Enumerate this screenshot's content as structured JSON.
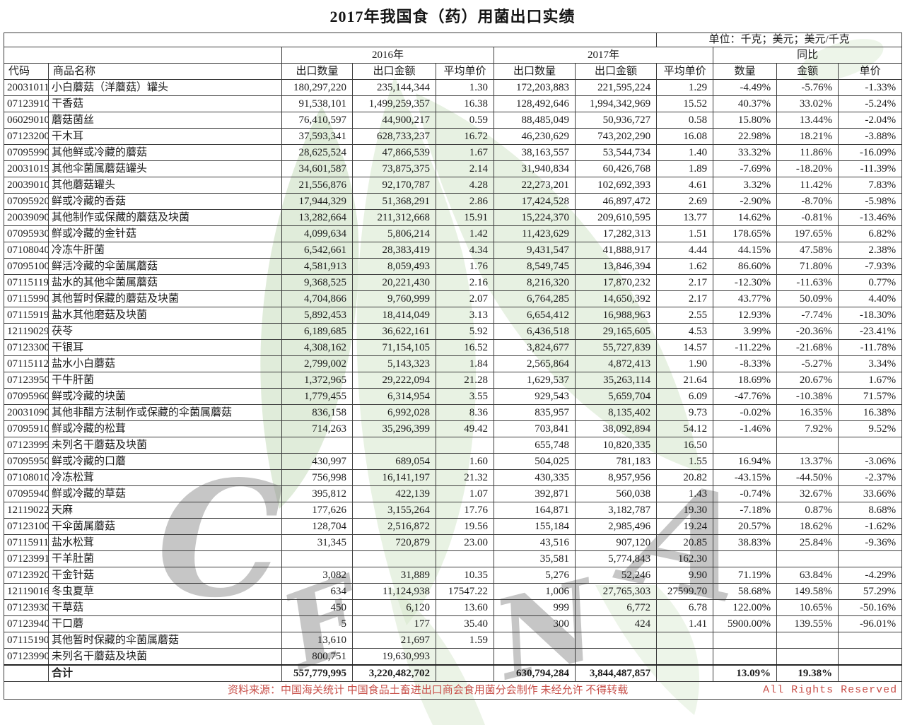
{
  "title": "2017年我国食（药）用菌出口实绩",
  "unit_note": "单位：千克；美元；美元/千克",
  "header": {
    "code": "代码",
    "name": "商品名称",
    "group_2016": "2016年",
    "group_2017": "2017年",
    "group_yoy": "同比",
    "qty": "出口数量",
    "value": "出口金额",
    "price": "平均单价",
    "yoy_qty": "数量",
    "yoy_value": "金额",
    "yoy_price": "单价"
  },
  "rows": [
    [
      "20031011",
      "小白蘑菇（洋蘑菇）罐头",
      "180,297,220",
      "235,144,344",
      "1.30",
      "172,203,883",
      "221,595,224",
      "1.29",
      "-4.49%",
      "-5.76%",
      "-1.33%"
    ],
    [
      "07123910",
      "干香菇",
      "91,538,101",
      "1,499,259,357",
      "16.38",
      "128,492,646",
      "1,994,342,969",
      "15.52",
      "40.37%",
      "33.02%",
      "-5.24%"
    ],
    [
      "06029010",
      "蘑菇菌丝",
      "76,410,597",
      "44,900,217",
      "0.59",
      "88,485,049",
      "50,936,727",
      "0.58",
      "15.80%",
      "13.44%",
      "-2.04%"
    ],
    [
      "07123200",
      "干木耳",
      "37,593,341",
      "628,733,237",
      "16.72",
      "46,230,629",
      "743,202,290",
      "16.08",
      "22.98%",
      "18.21%",
      "-3.88%"
    ],
    [
      "07095990",
      "其他鲜或冷藏的蘑菇",
      "28,625,524",
      "47,866,539",
      "1.67",
      "38,163,557",
      "53,544,734",
      "1.40",
      "33.32%",
      "11.86%",
      "-16.09%"
    ],
    [
      "20031019",
      "其他伞菌属蘑菇罐头",
      "34,601,587",
      "73,875,375",
      "2.14",
      "31,940,834",
      "60,426,768",
      "1.89",
      "-7.69%",
      "-18.20%",
      "-11.39%"
    ],
    [
      "20039010",
      "其他蘑菇罐头",
      "21,556,876",
      "92,170,787",
      "4.28",
      "22,273,201",
      "102,692,393",
      "4.61",
      "3.32%",
      "11.42%",
      "7.83%"
    ],
    [
      "07095920",
      "鲜或冷藏的香菇",
      "17,944,329",
      "51,368,291",
      "2.86",
      "17,424,528",
      "46,897,472",
      "2.69",
      "-2.90%",
      "-8.70%",
      "-5.98%"
    ],
    [
      "20039090",
      "其他制作或保藏的蘑菇及块菌",
      "13,282,664",
      "211,312,668",
      "15.91",
      "15,224,370",
      "209,610,595",
      "13.77",
      "14.62%",
      "-0.81%",
      "-13.46%"
    ],
    [
      "07095930",
      "鲜或冷藏的金针菇",
      "4,099,634",
      "5,806,214",
      "1.42",
      "11,423,629",
      "17,282,313",
      "1.51",
      "178.65%",
      "197.65%",
      "6.82%"
    ],
    [
      "07108040",
      "冷冻牛肝菌",
      "6,542,661",
      "28,383,419",
      "4.34",
      "9,431,547",
      "41,888,917",
      "4.44",
      "44.15%",
      "47.58%",
      "2.38%"
    ],
    [
      "07095100",
      "鲜活冷藏的伞菌属蘑菇",
      "4,581,913",
      "8,059,493",
      "1.76",
      "8,549,745",
      "13,846,394",
      "1.62",
      "86.60%",
      "71.80%",
      "-7.93%"
    ],
    [
      "07115119",
      "盐水的其他伞菌属蘑菇",
      "9,368,525",
      "20,221,430",
      "2.16",
      "8,216,320",
      "17,870,232",
      "2.17",
      "-12.30%",
      "-11.63%",
      "0.77%"
    ],
    [
      "07115990",
      "其他暂时保藏的蘑菇及块菌",
      "4,704,866",
      "9,760,999",
      "2.07",
      "6,764,285",
      "14,650,392",
      "2.17",
      "43.77%",
      "50.09%",
      "4.40%"
    ],
    [
      "07115919",
      "盐水其他磨菇及块菌",
      "5,892,453",
      "18,414,049",
      "3.13",
      "6,654,412",
      "16,988,963",
      "2.55",
      "12.93%",
      "-7.74%",
      "-18.30%"
    ],
    [
      "12119029",
      "茯苓",
      "6,189,685",
      "36,622,161",
      "5.92",
      "6,436,518",
      "29,165,605",
      "4.53",
      "3.99%",
      "-20.36%",
      "-23.41%"
    ],
    [
      "07123300",
      "干银耳",
      "4,308,162",
      "71,154,105",
      "16.52",
      "3,824,677",
      "55,727,839",
      "14.57",
      "-11.22%",
      "-21.68%",
      "-11.78%"
    ],
    [
      "07115112",
      "盐水小白蘑菇",
      "2,799,002",
      "5,143,323",
      "1.84",
      "2,565,864",
      "4,872,413",
      "1.90",
      "-8.33%",
      "-5.27%",
      "3.34%"
    ],
    [
      "07123950",
      "干牛肝菌",
      "1,372,965",
      "29,222,094",
      "21.28",
      "1,629,537",
      "35,263,114",
      "21.64",
      "18.69%",
      "20.67%",
      "1.67%"
    ],
    [
      "07095960",
      "鲜或冷藏的块菌",
      "1,779,455",
      "6,314,954",
      "3.55",
      "929,543",
      "5,659,704",
      "6.09",
      "-47.76%",
      "-10.38%",
      "71.57%"
    ],
    [
      "20031090",
      "其他非醋方法制作或保藏的伞菌属蘑菇",
      "836,158",
      "6,992,028",
      "8.36",
      "835,957",
      "8,135,402",
      "9.73",
      "-0.02%",
      "16.35%",
      "16.38%"
    ],
    [
      "07095910",
      "鲜或冷藏的松茸",
      "714,263",
      "35,296,399",
      "49.42",
      "703,841",
      "38,092,894",
      "54.12",
      "-1.46%",
      "7.92%",
      "9.52%"
    ],
    [
      "07123999",
      "未列名干蘑菇及块菌",
      "",
      "",
      "",
      "655,748",
      "10,820,335",
      "16.50",
      "",
      "",
      ""
    ],
    [
      "07095950",
      "鲜或冷藏的口蘑",
      "430,997",
      "689,054",
      "1.60",
      "504,025",
      "781,183",
      "1.55",
      "16.94%",
      "13.37%",
      "-3.06%"
    ],
    [
      "07108010",
      "冷冻松茸",
      "756,998",
      "16,141,197",
      "21.32",
      "430,335",
      "8,957,956",
      "20.82",
      "-43.15%",
      "-44.50%",
      "-2.37%"
    ],
    [
      "07095940",
      "鲜或冷藏的草菇",
      "395,812",
      "422,139",
      "1.07",
      "392,871",
      "560,038",
      "1.43",
      "-0.74%",
      "32.67%",
      "33.66%"
    ],
    [
      "12119022",
      "天麻",
      "177,626",
      "3,155,264",
      "17.76",
      "164,871",
      "3,182,787",
      "19.30",
      "-7.18%",
      "0.87%",
      "8.68%"
    ],
    [
      "07123100",
      "干伞菌属蘑菇",
      "128,704",
      "2,516,872",
      "19.56",
      "155,184",
      "2,985,496",
      "19.24",
      "20.57%",
      "18.62%",
      "-1.62%"
    ],
    [
      "07115911",
      "盐水松茸",
      "31,345",
      "720,879",
      "23.00",
      "43,516",
      "907,120",
      "20.85",
      "38.83%",
      "25.84%",
      "-9.36%"
    ],
    [
      "07123991",
      "干羊肚菌",
      "",
      "",
      "",
      "35,581",
      "5,774,843",
      "162.30",
      "",
      "",
      ""
    ],
    [
      "07123920",
      "干金针菇",
      "3,082",
      "31,889",
      "10.35",
      "5,276",
      "52,246",
      "9.90",
      "71.19%",
      "63.84%",
      "-4.29%"
    ],
    [
      "12119016",
      "冬虫夏草",
      "634",
      "11,124,938",
      "17547.22",
      "1,006",
      "27,765,303",
      "27599.70",
      "58.68%",
      "149.58%",
      "57.29%"
    ],
    [
      "07123930",
      "干草菇",
      "450",
      "6,120",
      "13.60",
      "999",
      "6,772",
      "6.78",
      "122.00%",
      "10.65%",
      "-50.16%"
    ],
    [
      "07123940",
      "干口蘑",
      "5",
      "177",
      "35.40",
      "300",
      "424",
      "1.41",
      "5900.00%",
      "139.55%",
      "-96.01%"
    ],
    [
      "07115190",
      "其他暂时保藏的伞菌属蘑菇",
      "13,610",
      "21,697",
      "1.59",
      "",
      "",
      "",
      "",
      "",
      ""
    ],
    [
      "07123990",
      "未列名干蘑菇及块菌",
      "800,751",
      "19,630,993",
      "",
      "",
      "",
      "",
      "",
      "",
      ""
    ]
  ],
  "total": {
    "label": "合计",
    "qty_2016": "557,779,995",
    "value_2016": "3,220,482,702",
    "price_2016": "",
    "qty_2017": "630,794,284",
    "value_2017": "3,844,487,857",
    "price_2017": "",
    "yoy_qty": "13.09%",
    "yoy_value": "19.38%",
    "yoy_price": ""
  },
  "footer": {
    "source": "资料来源：中国海关统计 中国食品土畜进出口商会食用菌分会制作 未经允许 不得转载",
    "rights": "All Rights Reserved"
  },
  "watermark": {
    "c": "C",
    "f": "F",
    "n": "N",
    "a": "A"
  },
  "colors": {
    "footer_red": "#c8504a",
    "unit_note_red": "#9c4f45",
    "leaf_green_light": "#d6e7cc",
    "leaf_green": "#cfe3c6",
    "letter_gray": "#8e8e8e"
  }
}
